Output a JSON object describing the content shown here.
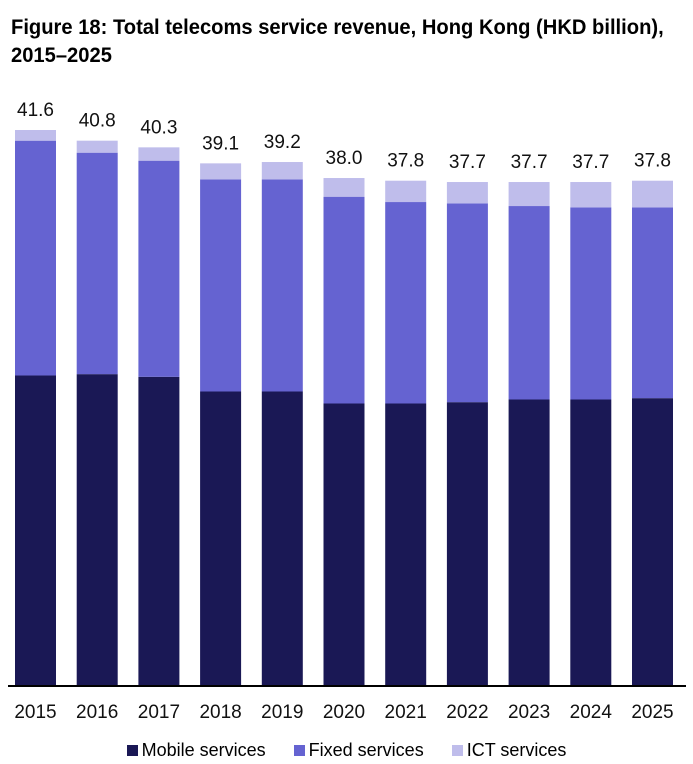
{
  "chart_data": {
    "type": "bar",
    "stacked": true,
    "title": "Figure 18: Total telecoms service revenue, Hong Kong (HKD billion), 2015–2025",
    "xlabel": "",
    "ylabel": "",
    "categories": [
      "2015",
      "2016",
      "2017",
      "2018",
      "2019",
      "2020",
      "2021",
      "2022",
      "2023",
      "2024",
      "2025"
    ],
    "series": [
      {
        "name": "Mobile services",
        "color": "#1a1855",
        "values": [
          23.2,
          23.3,
          23.1,
          22.0,
          22.0,
          21.1,
          21.1,
          21.2,
          21.4,
          21.4,
          21.5
        ]
      },
      {
        "name": "Fixed services",
        "color": "#6563d1",
        "values": [
          17.6,
          16.6,
          16.2,
          15.9,
          15.9,
          15.5,
          15.1,
          14.9,
          14.5,
          14.4,
          14.3
        ]
      },
      {
        "name": "ICT services",
        "color": "#bfbdeb",
        "values": [
          0.8,
          0.9,
          1.0,
          1.2,
          1.3,
          1.4,
          1.6,
          1.6,
          1.8,
          1.9,
          2.0
        ]
      }
    ],
    "totals": [
      "41.6",
      "40.8",
      "40.3",
      "39.1",
      "39.2",
      "38.0",
      "37.8",
      "37.7",
      "37.7",
      "37.7",
      "37.8"
    ],
    "ylim": [
      0,
      41.6
    ],
    "grid": false,
    "legend_position": "bottom-center"
  }
}
